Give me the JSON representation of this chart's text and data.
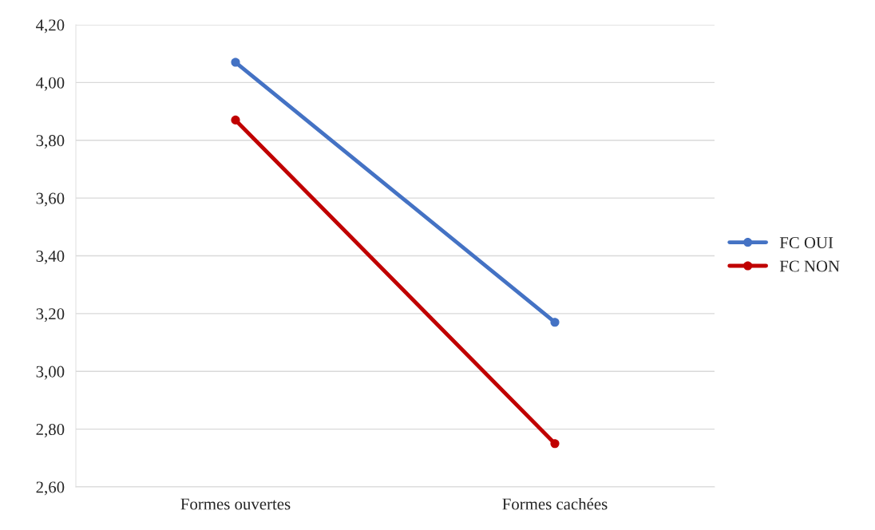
{
  "chart_data": {
    "type": "line",
    "categories": [
      "Formes ouvertes",
      "Formes cachées"
    ],
    "series": [
      {
        "name": "FC OUI",
        "color": "#4472c4",
        "values": [
          4.07,
          3.17
        ]
      },
      {
        "name": "FC NON",
        "color": "#c00000",
        "values": [
          3.87,
          2.75
        ]
      }
    ],
    "ylim": [
      2.6,
      4.2
    ],
    "yticks": [
      {
        "value": 2.6,
        "label": "2,60"
      },
      {
        "value": 2.8,
        "label": "2,80"
      },
      {
        "value": 3.0,
        "label": "3,00"
      },
      {
        "value": 3.2,
        "label": "3,20"
      },
      {
        "value": 3.4,
        "label": "3,40"
      },
      {
        "value": 3.6,
        "label": "3,60"
      },
      {
        "value": 3.8,
        "label": "3,80"
      },
      {
        "value": 4.0,
        "label": "4,00"
      },
      {
        "value": 4.2,
        "label": "4,20"
      }
    ],
    "grid": "y",
    "legend": "right",
    "marker": "circle",
    "line_style": "solid"
  }
}
